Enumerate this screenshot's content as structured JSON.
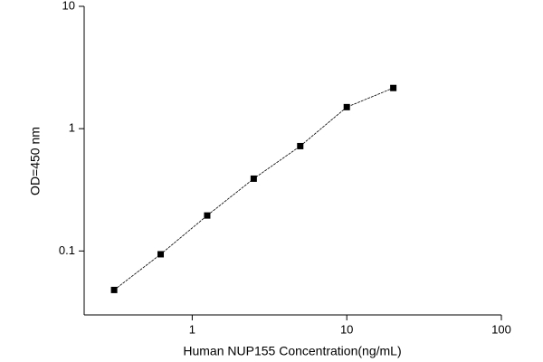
{
  "chart_data": {
    "type": "line",
    "log_x": true,
    "log_y": true,
    "x_label": "Human NUP155 Concentration(ng/mL)",
    "y_label": "OD=450 nm",
    "x": [
      0.3125,
      0.625,
      1.25,
      2.5,
      5,
      10,
      20
    ],
    "series": [
      {
        "color": "#000000",
        "values": [
          0.048,
          0.094,
          0.195,
          0.39,
          0.72,
          1.5,
          2.15
        ]
      }
    ],
    "xlim": [
      0.2,
      100
    ],
    "xticks": [
      1,
      10,
      100
    ],
    "ylim": [
      0.03,
      10
    ],
    "yticks": [
      0.1,
      1,
      10
    ]
  }
}
